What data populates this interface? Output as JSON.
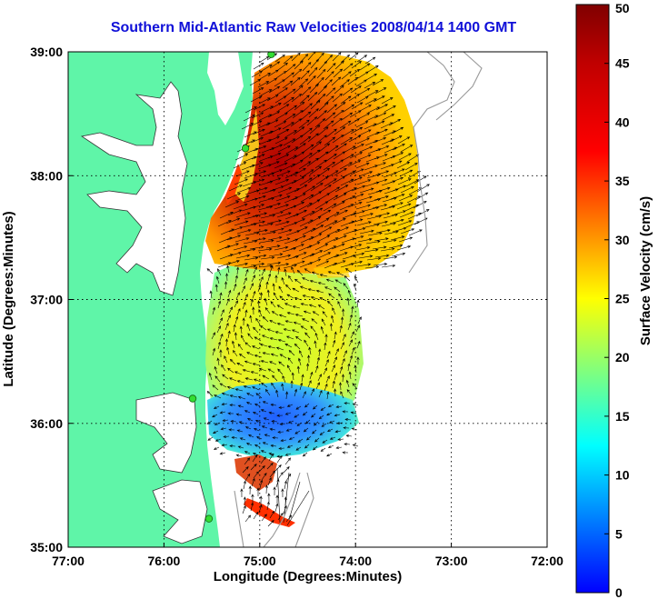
{
  "title": "Southern Mid-Atlantic Raw Velocities 2008/04/14 1400 GMT",
  "x_axis": {
    "label": "Longitude (Degrees:Minutes)",
    "ticks": [
      "77:00",
      "76:00",
      "75:00",
      "74:00",
      "73:00",
      "72:00"
    ]
  },
  "y_axis": {
    "label": "Latitude (Degrees:Minutes)",
    "ticks": [
      "39:00",
      "38:00",
      "37:00",
      "36:00",
      "35:00"
    ]
  },
  "colorbar": {
    "label": "Surface Velocity (cm/s)",
    "ticks": [
      "50",
      "45",
      "40",
      "35",
      "30",
      "25",
      "20",
      "15",
      "10",
      "5",
      "0"
    ],
    "colormap": "jet",
    "range": [
      0,
      50
    ]
  },
  "colors": {
    "land": "#5ff5a8",
    "title": "#1010d8",
    "station": "#33dd33"
  },
  "map_extent": {
    "lon": [
      -77,
      -72
    ],
    "lat": [
      35,
      39
    ]
  },
  "stations": [
    {
      "lon": -74.88,
      "lat": 38.98
    },
    {
      "lon": -75.15,
      "lat": 38.22
    },
    {
      "lon": -75.7,
      "lat": 36.2
    },
    {
      "lon": -75.53,
      "lat": 35.23
    }
  ]
}
